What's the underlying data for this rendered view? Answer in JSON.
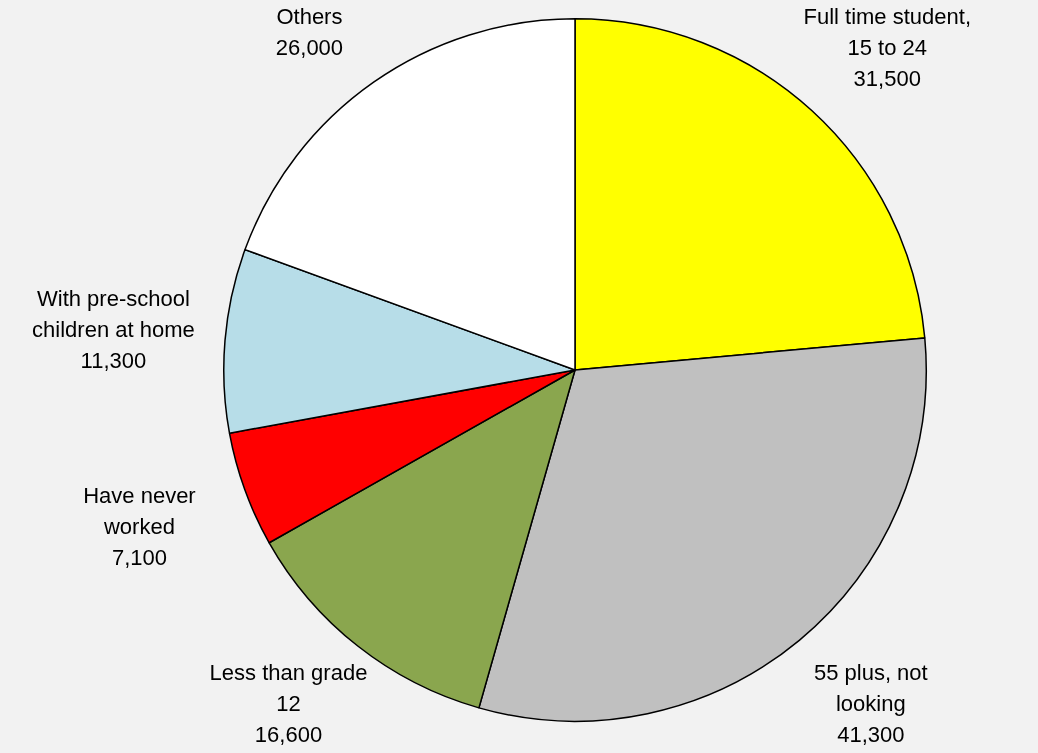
{
  "chart_data": {
    "type": "pie",
    "categories": [
      "Full time student, 15 to 24",
      "55 plus, not looking",
      "Less than grade 12",
      "Have never worked",
      "With pre-school children at home",
      "Others"
    ],
    "values": [
      31500,
      41300,
      16600,
      7100,
      11300,
      26000
    ],
    "colors": [
      "#ffff00",
      "#c0c0c0",
      "#8aa64e",
      "#ff0000",
      "#b7dde8",
      "#ffffff"
    ],
    "value_labels": [
      "31,500",
      "41,300",
      "16,600",
      "7,100",
      "11,300",
      "26,000"
    ],
    "legend": false
  }
}
